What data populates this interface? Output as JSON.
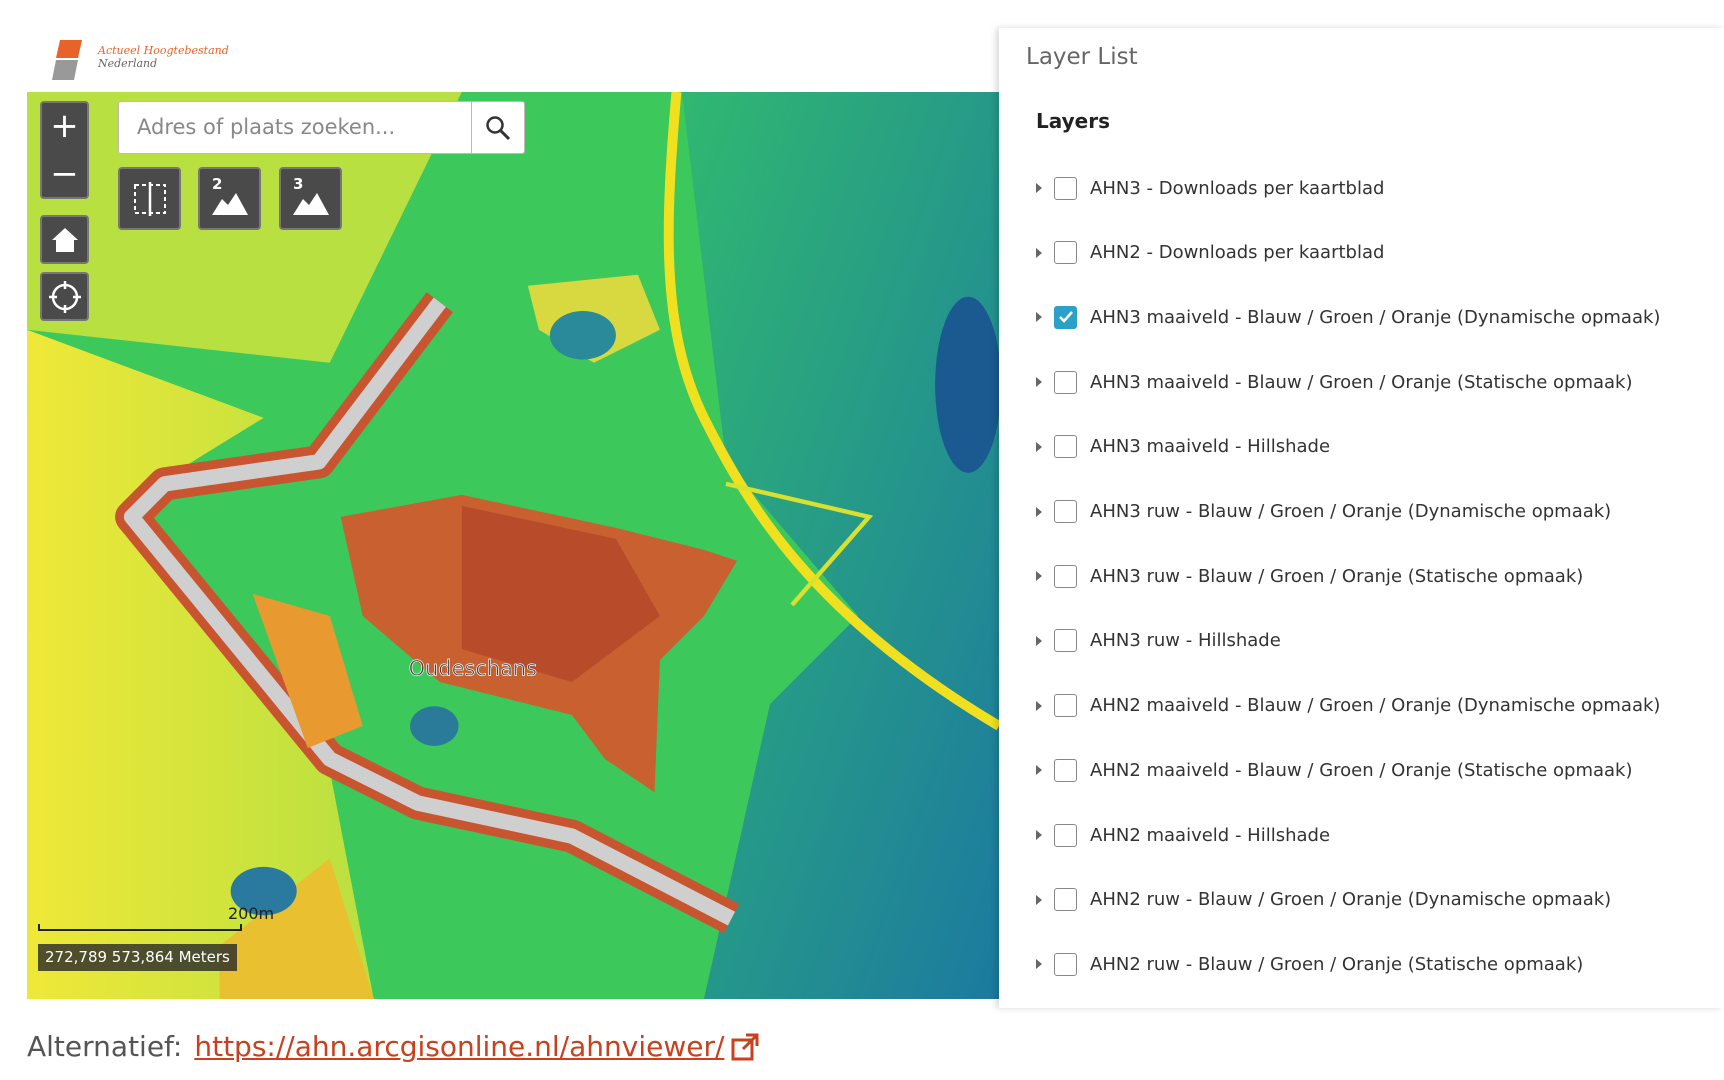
{
  "logo": {
    "line1": "Actueel Hoogtebestand",
    "line2": "Nederland"
  },
  "map": {
    "search_placeholder": "Adres of plaats zoeken...",
    "tool_numbers": [
      "2",
      "3"
    ],
    "place_label": "Oudeschans",
    "scale_label": "200m",
    "coordinates": "272,789 573,864 Meters"
  },
  "panel": {
    "title": "Layer List",
    "heading": "Layers",
    "layers": [
      {
        "label": "AHN3 - Downloads per kaartblad",
        "checked": false
      },
      {
        "label": "AHN2 - Downloads per kaartblad",
        "checked": false
      },
      {
        "label": "AHN3 maaiveld - Blauw / Groen / Oranje (Dynamische opmaak)",
        "checked": true
      },
      {
        "label": "AHN3 maaiveld - Blauw / Groen / Oranje (Statische opmaak)",
        "checked": false
      },
      {
        "label": "AHN3 maaiveld - Hillshade",
        "checked": false
      },
      {
        "label": "AHN3 ruw - Blauw / Groen / Oranje (Dynamische opmaak)",
        "checked": false
      },
      {
        "label": "AHN3 ruw - Blauw / Groen / Oranje (Statische opmaak)",
        "checked": false
      },
      {
        "label": "AHN3 ruw - Hillshade",
        "checked": false
      },
      {
        "label": "AHN2 maaiveld - Blauw / Groen / Oranje (Dynamische opmaak)",
        "checked": false
      },
      {
        "label": "AHN2 maaiveld - Blauw / Groen / Oranje (Statische opmaak)",
        "checked": false
      },
      {
        "label": "AHN2 maaiveld - Hillshade",
        "checked": false
      },
      {
        "label": "AHN2 ruw - Blauw / Groen / Oranje (Dynamische opmaak)",
        "checked": false
      },
      {
        "label": "AHN2 ruw - Blauw / Groen / Oranje (Statische opmaak)",
        "checked": false
      }
    ]
  },
  "footer": {
    "label": "Alternatief:",
    "link": "https://ahn.arcgisonline.nl/ahnviewer/"
  }
}
